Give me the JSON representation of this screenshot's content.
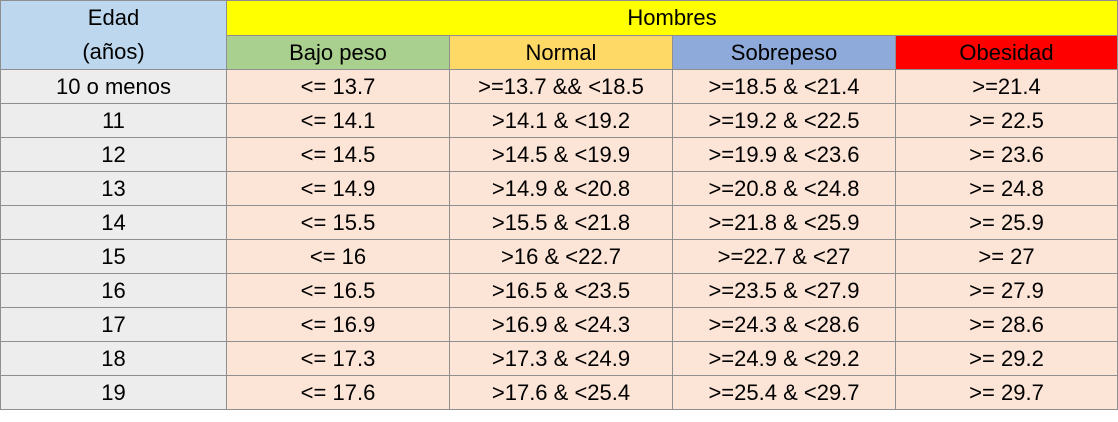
{
  "header": {
    "age_line1": "Edad",
    "age_line2": "(años)",
    "group_title": "Hombres",
    "categories": [
      {
        "label": "Bajo peso",
        "color": "#a9d08e"
      },
      {
        "label": "Normal",
        "color": "#ffd966"
      },
      {
        "label": "Sobrepeso",
        "color": "#8eaadb"
      },
      {
        "label": "Obesidad",
        "color": "#ff0000"
      }
    ]
  },
  "rows": [
    {
      "age": "10 o menos",
      "bajo": "<= 13.7",
      "normal": ">=13.7 && <18.5",
      "sobre": ">=18.5 & <21.4",
      "obes": ">=21.4"
    },
    {
      "age": "11",
      "bajo": "<= 14.1",
      "normal": ">14.1 & <19.2",
      "sobre": ">=19.2 & <22.5",
      "obes": ">= 22.5"
    },
    {
      "age": "12",
      "bajo": "<= 14.5",
      "normal": ">14.5 & <19.9",
      "sobre": ">=19.9 & <23.6",
      "obes": ">= 23.6"
    },
    {
      "age": "13",
      "bajo": "<= 14.9",
      "normal": ">14.9 & <20.8",
      "sobre": ">=20.8 & <24.8",
      "obes": ">= 24.8"
    },
    {
      "age": "14",
      "bajo": "<= 15.5",
      "normal": ">15.5 & <21.8",
      "sobre": ">=21.8 & <25.9",
      "obes": ">= 25.9"
    },
    {
      "age": "15",
      "bajo": "<= 16",
      "normal": ">16 & <22.7",
      "sobre": ">=22.7 & <27",
      "obes": ">= 27"
    },
    {
      "age": "16",
      "bajo": "<= 16.5",
      "normal": ">16.5 & <23.5",
      "sobre": ">=23.5 & <27.9",
      "obes": ">= 27.9"
    },
    {
      "age": "17",
      "bajo": "<= 16.9",
      "normal": ">16.9 & <24.3",
      "sobre": ">=24.3 & <28.6",
      "obes": ">= 28.6"
    },
    {
      "age": "18",
      "bajo": "<= 17.3",
      "normal": ">17.3 & <24.9",
      "sobre": ">=24.9 & <29.2",
      "obes": ">= 29.2"
    },
    {
      "age": "19",
      "bajo": "<= 17.6",
      "normal": ">17.6 & <25.4",
      "sobre": ">=25.4 & <29.7",
      "obes": ">= 29.7"
    }
  ]
}
